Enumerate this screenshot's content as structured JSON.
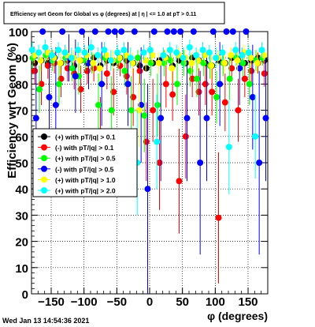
{
  "chart_data": {
    "type": "scatter",
    "title": "Efficiency wrt Geom for Global vs φ (degrees) at | η | <= 1.0 at pT > 0.11",
    "xlabel": "φ (degrees)",
    "ylabel": "Efficiency wrt Geom (%)",
    "xlim": [
      -180,
      180
    ],
    "ylim": [
      0,
      100
    ],
    "xticks": [
      -150,
      -100,
      -50,
      0,
      50,
      100,
      150
    ],
    "xtick_labels": [
      "−150",
      "−100",
      "−50",
      "0",
      "50",
      "100",
      "150"
    ],
    "yticks": [
      0,
      10,
      20,
      30,
      40,
      50,
      60,
      70,
      80,
      90,
      100
    ],
    "grid": true,
    "legend_position": "left-center",
    "timestamp": "Wed Jan 13 14:54:36 2021",
    "series": [
      {
        "name": "(+) with pT/|q| > 0.1",
        "color": "#000000",
        "x": [
          -175,
          -165,
          -155,
          -145,
          -135,
          -125,
          -115,
          -105,
          -95,
          -85,
          -75,
          -65,
          -55,
          -45,
          -35,
          -25,
          -15,
          -5,
          5,
          15,
          25,
          35,
          45,
          55,
          65,
          75,
          85,
          95,
          105,
          115,
          125,
          135,
          145,
          155,
          165,
          175
        ],
        "y": [
          88,
          89,
          88,
          90,
          88,
          89,
          87,
          89,
          88,
          90,
          87,
          89,
          88,
          90,
          89,
          88,
          87,
          86,
          88,
          89,
          90,
          87,
          89,
          88,
          90,
          89,
          88,
          87,
          89,
          88,
          90,
          89,
          88,
          89,
          90,
          89
        ],
        "err": [
          1,
          1,
          1,
          1,
          1,
          1,
          1,
          1,
          1,
          1,
          1,
          1,
          1,
          1,
          1,
          1,
          1,
          1,
          1,
          1,
          1,
          1,
          1,
          1,
          1,
          1,
          1,
          1,
          1,
          1,
          1,
          1,
          1,
          1,
          1,
          1
        ]
      },
      {
        "name": "(-) with pT/|q| > 0.1",
        "color": "#ff0000",
        "x": [
          -175,
          -165,
          -155,
          -145,
          -135,
          -125,
          -115,
          -105,
          -95,
          -85,
          -75,
          -65,
          -55,
          -45,
          -35,
          -25,
          -15,
          -5,
          5,
          15,
          25,
          35,
          45,
          55,
          65,
          75,
          85,
          95,
          105,
          115,
          125,
          135,
          145,
          155,
          165,
          175
        ],
        "y": [
          85,
          80,
          87,
          88,
          82,
          86,
          84,
          78,
          85,
          86,
          62,
          84,
          77,
          87,
          83,
          75,
          85,
          58,
          70,
          50,
          80,
          76,
          43,
          60,
          82,
          77,
          80,
          77,
          29,
          73,
          86,
          70,
          82,
          85,
          88,
          84
        ],
        "err": [
          5,
          8,
          5,
          4,
          7,
          5,
          6,
          9,
          5,
          5,
          13,
          6,
          9,
          4,
          7,
          11,
          5,
          15,
          12,
          18,
          9,
          10,
          20,
          16,
          7,
          9,
          8,
          9,
          25,
          11,
          5,
          12,
          7,
          5,
          4,
          5
        ]
      },
      {
        "name": "(+) with pT/|q| > 0.5",
        "color": "#00ff00",
        "x": [
          -178,
          -168,
          -158,
          -148,
          -138,
          -128,
          -118,
          -108,
          -98,
          -88,
          -78,
          -68,
          -58,
          -48,
          -38,
          -28,
          -18,
          -8,
          2,
          12,
          22,
          32,
          42,
          52,
          62,
          72,
          82,
          92,
          102,
          112,
          122,
          132,
          142,
          152,
          162,
          172
        ],
        "y": [
          90,
          78,
          91,
          89,
          80,
          90,
          86,
          83,
          89,
          88,
          72,
          90,
          70,
          89,
          85,
          70,
          90,
          68,
          88,
          72,
          88,
          89,
          80,
          88,
          85,
          82,
          88,
          87,
          75,
          88,
          82,
          90,
          88,
          80,
          89,
          90
        ],
        "err": [
          4,
          9,
          3,
          4,
          8,
          3,
          5,
          7,
          4,
          4,
          12,
          3,
          13,
          4,
          6,
          13,
          3,
          14,
          5,
          12,
          5,
          4,
          8,
          5,
          6,
          7,
          5,
          5,
          10,
          5,
          8,
          3,
          5,
          8,
          4,
          3
        ]
      },
      {
        "name": "(-) with pT/|q| > 0.5",
        "color": "#0000ff",
        "x": [
          -173,
          -163,
          -153,
          -143,
          -133,
          -123,
          -113,
          -103,
          -93,
          -83,
          -73,
          -63,
          -53,
          -43,
          -33,
          -23,
          -13,
          -3,
          7,
          17,
          27,
          37,
          47,
          57,
          67,
          77,
          87,
          97,
          107,
          117,
          127,
          137,
          147,
          157,
          167,
          177
        ],
        "y": [
          67,
          100,
          75,
          72,
          100,
          90,
          83,
          100,
          88,
          100,
          80,
          100,
          100,
          100,
          80,
          100,
          72,
          40,
          100,
          67,
          100,
          100,
          100,
          67,
          100,
          50,
          67,
          100,
          80,
          100,
          100,
          86,
          100,
          75,
          50,
          67
        ],
        "err": [
          20,
          0,
          18,
          22,
          0,
          9,
          14,
          0,
          10,
          0,
          16,
          0,
          0,
          0,
          16,
          0,
          22,
          40,
          0,
          24,
          0,
          0,
          0,
          24,
          0,
          35,
          24,
          0,
          16,
          0,
          0,
          14,
          0,
          20,
          35,
          24
        ]
      },
      {
        "name": "(+) with pT/|q| > 1.0",
        "color": "#ffff00",
        "x": [
          -176,
          -166,
          -156,
          -146,
          -136,
          -126,
          -116,
          -106,
          -96,
          -86,
          -76,
          -66,
          -56,
          -46,
          -36,
          -26,
          -16,
          -6,
          4,
          14,
          24,
          34,
          44,
          54,
          64,
          74,
          84,
          94,
          104,
          114,
          124,
          134,
          144,
          154,
          164,
          174
        ],
        "y": [
          91,
          89,
          92,
          90,
          88,
          91,
          90,
          89,
          91,
          88,
          86,
          91,
          89,
          90,
          91,
          88,
          70,
          89,
          91,
          88,
          90,
          86,
          91,
          90,
          88,
          89,
          91,
          87,
          90,
          88,
          91,
          89,
          92,
          90,
          88,
          91
        ],
        "err": [
          3,
          4,
          3,
          3,
          4,
          3,
          3,
          4,
          3,
          4,
          5,
          3,
          4,
          3,
          3,
          4,
          14,
          4,
          3,
          4,
          3,
          5,
          3,
          3,
          4,
          4,
          3,
          5,
          3,
          4,
          3,
          4,
          3,
          3,
          4,
          3
        ]
      },
      {
        "name": "(+) with pT/|q| > 2.0",
        "color": "#00ffff",
        "x": [
          -179,
          -169,
          -159,
          -149,
          -139,
          -129,
          -119,
          -109,
          -99,
          -89,
          -79,
          -69,
          -59,
          -49,
          -39,
          -29,
          -19,
          -9,
          1,
          11,
          21,
          31,
          41,
          51,
          61,
          71,
          81,
          91,
          101,
          111,
          121,
          131,
          141,
          151,
          161,
          171
        ],
        "y": [
          93,
          92,
          94,
          91,
          93,
          92,
          90,
          93,
          92,
          94,
          91,
          93,
          89,
          92,
          93,
          90,
          50,
          92,
          93,
          58,
          91,
          93,
          92,
          90,
          94,
          91,
          93,
          92,
          90,
          92,
          56,
          93,
          91,
          92,
          60,
          93
        ],
        "err": [
          3,
          3,
          3,
          3,
          3,
          3,
          4,
          3,
          3,
          3,
          3,
          3,
          4,
          3,
          3,
          4,
          20,
          3,
          3,
          18,
          3,
          3,
          3,
          4,
          3,
          3,
          3,
          3,
          4,
          3,
          18,
          3,
          3,
          3,
          16,
          3
        ]
      }
    ]
  }
}
